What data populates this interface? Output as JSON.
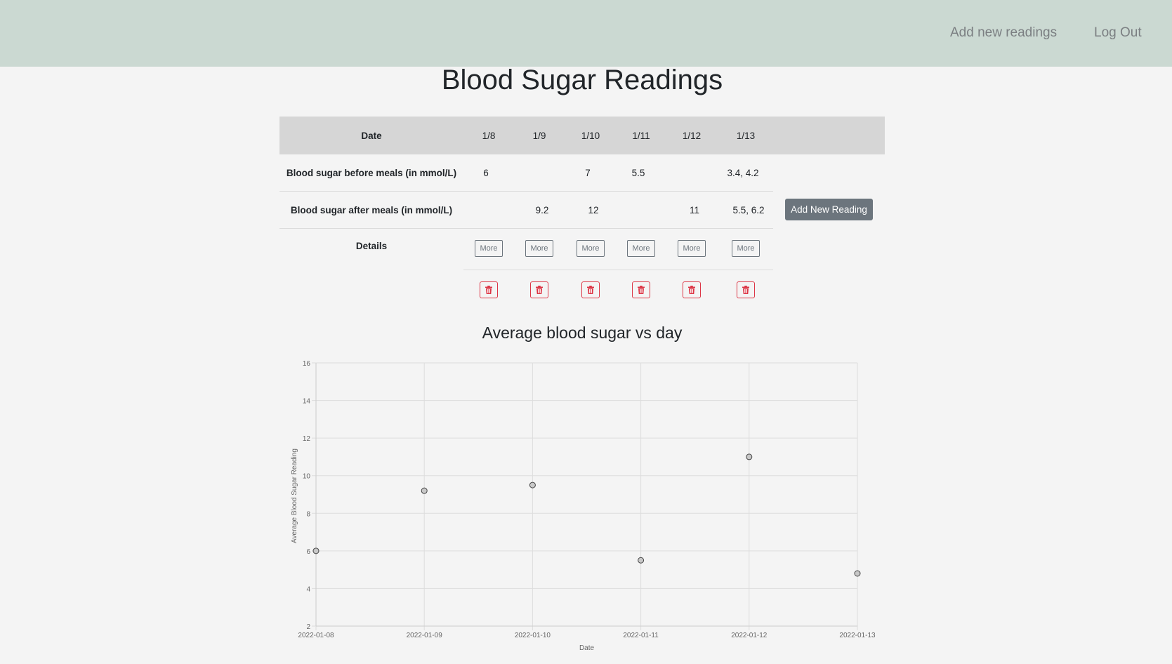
{
  "nav": {
    "add_new_readings": "Add new readings",
    "log_out": "Log Out"
  },
  "page": {
    "title": "Blood Sugar Readings"
  },
  "table": {
    "date_header": "Date",
    "dates": [
      "1/8",
      "1/9",
      "1/10",
      "1/11",
      "1/12",
      "1/13"
    ],
    "before_label": "Blood sugar before meals (in mmol/L)",
    "before_values": [
      "6",
      "",
      "7",
      "5.5",
      "",
      "3.4, 4.2"
    ],
    "after_label": "Blood sugar after meals (in mmol/L)",
    "after_values": [
      "",
      "9.2",
      "12",
      "",
      "11",
      "5.5, 6.2"
    ],
    "details_label": "Details",
    "more_label": "More",
    "add_new_reading_label": "Add New Reading",
    "delete_icon": "trash-icon",
    "delete_color": "#dc3545"
  },
  "chart_data": {
    "type": "scatter",
    "title": "Average blood sugar vs day",
    "xlabel": "Date",
    "ylabel": "Average Blood Sugar Reading",
    "x": [
      "2022-01-08",
      "2022-01-09",
      "2022-01-10",
      "2022-01-11",
      "2022-01-12",
      "2022-01-13"
    ],
    "y": [
      6,
      9.2,
      9.5,
      5.5,
      11,
      4.8
    ],
    "ylim": [
      2,
      16
    ],
    "yticks": [
      2,
      4,
      6,
      8,
      10,
      12,
      14,
      16
    ],
    "grid": true,
    "point_fill": "#c8c8c8",
    "point_stroke": "#444444"
  }
}
